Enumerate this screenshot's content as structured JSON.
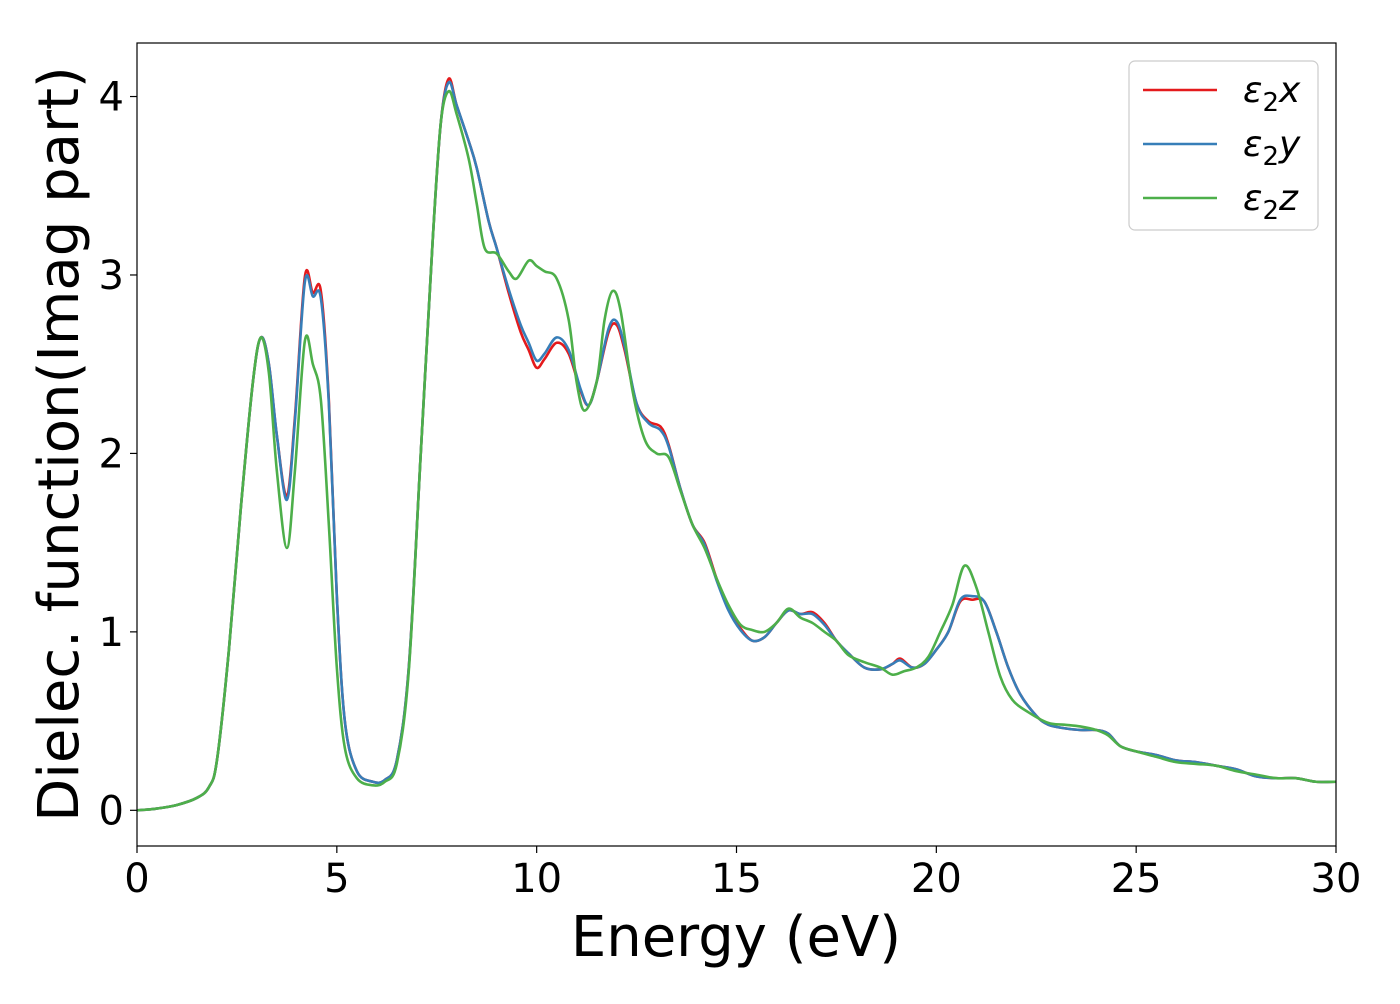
{
  "chart_data": {
    "type": "line",
    "title": "",
    "xlabel": "Energy (eV)",
    "ylabel": "Dielec. function(Imag part)",
    "xlim": [
      0,
      30
    ],
    "ylim": [
      -0.2,
      4.3
    ],
    "xticks": [
      0,
      5,
      10,
      15,
      20,
      25,
      30
    ],
    "yticks": [
      0,
      1,
      2,
      3,
      4
    ],
    "xtick_labels": [
      "0",
      "5",
      "10",
      "15",
      "20",
      "25",
      "30"
    ],
    "ytick_labels": [
      "0",
      "1",
      "2",
      "3",
      "4"
    ],
    "grid": false,
    "legend_position": "top-right",
    "series": [
      {
        "name": "ε2x",
        "legend_main": "ε",
        "legend_sub": "2",
        "legend_suffix": "x",
        "color": "#e41a1c",
        "points": [
          [
            0,
            0
          ],
          [
            0.5,
            0.01
          ],
          [
            1.0,
            0.03
          ],
          [
            1.5,
            0.07
          ],
          [
            1.8,
            0.13
          ],
          [
            2.0,
            0.28
          ],
          [
            2.3,
            0.9
          ],
          [
            2.6,
            1.7
          ],
          [
            2.9,
            2.4
          ],
          [
            3.1,
            2.65
          ],
          [
            3.3,
            2.5
          ],
          [
            3.5,
            2.1
          ],
          [
            3.75,
            1.76
          ],
          [
            3.95,
            2.2
          ],
          [
            4.2,
            2.99
          ],
          [
            4.4,
            2.9
          ],
          [
            4.6,
            2.91
          ],
          [
            4.8,
            2.3
          ],
          [
            5.0,
            1.2
          ],
          [
            5.2,
            0.5
          ],
          [
            5.5,
            0.22
          ],
          [
            5.9,
            0.16
          ],
          [
            6.2,
            0.17
          ],
          [
            6.5,
            0.28
          ],
          [
            6.8,
            0.8
          ],
          [
            7.1,
            2.0
          ],
          [
            7.4,
            3.2
          ],
          [
            7.6,
            3.85
          ],
          [
            7.8,
            4.1
          ],
          [
            8.0,
            3.95
          ],
          [
            8.3,
            3.75
          ],
          [
            8.5,
            3.6
          ],
          [
            8.8,
            3.3
          ],
          [
            9.0,
            3.15
          ],
          [
            9.3,
            2.9
          ],
          [
            9.6,
            2.68
          ],
          [
            9.8,
            2.58
          ],
          [
            10.0,
            2.48
          ],
          [
            10.2,
            2.53
          ],
          [
            10.5,
            2.62
          ],
          [
            10.8,
            2.56
          ],
          [
            11.1,
            2.35
          ],
          [
            11.3,
            2.27
          ],
          [
            11.5,
            2.4
          ],
          [
            11.8,
            2.68
          ],
          [
            12.0,
            2.72
          ],
          [
            12.2,
            2.58
          ],
          [
            12.5,
            2.28
          ],
          [
            12.8,
            2.18
          ],
          [
            13.1,
            2.15
          ],
          [
            13.3,
            2.05
          ],
          [
            13.6,
            1.8
          ],
          [
            13.9,
            1.6
          ],
          [
            14.2,
            1.5
          ],
          [
            14.5,
            1.3
          ],
          [
            14.8,
            1.13
          ],
          [
            15.1,
            1.02
          ],
          [
            15.4,
            0.95
          ],
          [
            15.7,
            0.97
          ],
          [
            16.0,
            1.05
          ],
          [
            16.3,
            1.12
          ],
          [
            16.6,
            1.1
          ],
          [
            16.9,
            1.11
          ],
          [
            17.2,
            1.05
          ],
          [
            17.5,
            0.95
          ],
          [
            17.8,
            0.88
          ],
          [
            18.2,
            0.8
          ],
          [
            18.6,
            0.79
          ],
          [
            18.9,
            0.82
          ],
          [
            19.1,
            0.85
          ],
          [
            19.4,
            0.8
          ],
          [
            19.7,
            0.82
          ],
          [
            20.0,
            0.9
          ],
          [
            20.3,
            1.0
          ],
          [
            20.6,
            1.17
          ],
          [
            20.9,
            1.18
          ],
          [
            21.2,
            1.17
          ],
          [
            21.5,
            1.0
          ],
          [
            21.8,
            0.8
          ],
          [
            22.1,
            0.65
          ],
          [
            22.5,
            0.53
          ],
          [
            22.8,
            0.48
          ],
          [
            23.2,
            0.46
          ],
          [
            23.6,
            0.45
          ],
          [
            24.0,
            0.45
          ],
          [
            24.3,
            0.43
          ],
          [
            24.6,
            0.36
          ],
          [
            25.0,
            0.33
          ],
          [
            25.5,
            0.31
          ],
          [
            26.0,
            0.28
          ],
          [
            26.5,
            0.27
          ],
          [
            27.0,
            0.25
          ],
          [
            27.5,
            0.23
          ],
          [
            28.0,
            0.19
          ],
          [
            28.5,
            0.18
          ],
          [
            29.0,
            0.18
          ],
          [
            29.5,
            0.16
          ],
          [
            30.0,
            0.16
          ]
        ]
      },
      {
        "name": "ε2y",
        "legend_main": "ε",
        "legend_sub": "2",
        "legend_suffix": "y",
        "color": "#377eb8",
        "points": [
          [
            0,
            0
          ],
          [
            0.5,
            0.01
          ],
          [
            1.0,
            0.03
          ],
          [
            1.5,
            0.07
          ],
          [
            1.8,
            0.13
          ],
          [
            2.0,
            0.28
          ],
          [
            2.3,
            0.9
          ],
          [
            2.6,
            1.7
          ],
          [
            2.9,
            2.4
          ],
          [
            3.1,
            2.65
          ],
          [
            3.3,
            2.5
          ],
          [
            3.5,
            2.1
          ],
          [
            3.75,
            1.74
          ],
          [
            3.95,
            2.18
          ],
          [
            4.2,
            2.96
          ],
          [
            4.4,
            2.88
          ],
          [
            4.6,
            2.87
          ],
          [
            4.8,
            2.28
          ],
          [
            5.0,
            1.2
          ],
          [
            5.2,
            0.5
          ],
          [
            5.5,
            0.22
          ],
          [
            5.9,
            0.16
          ],
          [
            6.2,
            0.17
          ],
          [
            6.5,
            0.28
          ],
          [
            6.8,
            0.8
          ],
          [
            7.1,
            2.0
          ],
          [
            7.4,
            3.2
          ],
          [
            7.6,
            3.85
          ],
          [
            7.8,
            4.08
          ],
          [
            8.0,
            3.95
          ],
          [
            8.3,
            3.75
          ],
          [
            8.5,
            3.6
          ],
          [
            8.8,
            3.3
          ],
          [
            9.0,
            3.15
          ],
          [
            9.3,
            2.92
          ],
          [
            9.6,
            2.72
          ],
          [
            9.8,
            2.62
          ],
          [
            10.0,
            2.52
          ],
          [
            10.2,
            2.56
          ],
          [
            10.5,
            2.65
          ],
          [
            10.8,
            2.58
          ],
          [
            11.1,
            2.36
          ],
          [
            11.3,
            2.27
          ],
          [
            11.5,
            2.4
          ],
          [
            11.8,
            2.7
          ],
          [
            12.0,
            2.74
          ],
          [
            12.2,
            2.6
          ],
          [
            12.5,
            2.28
          ],
          [
            12.8,
            2.17
          ],
          [
            13.1,
            2.13
          ],
          [
            13.3,
            2.04
          ],
          [
            13.6,
            1.8
          ],
          [
            13.9,
            1.6
          ],
          [
            14.2,
            1.49
          ],
          [
            14.5,
            1.29
          ],
          [
            14.8,
            1.12
          ],
          [
            15.1,
            1.01
          ],
          [
            15.4,
            0.95
          ],
          [
            15.7,
            0.97
          ],
          [
            16.0,
            1.05
          ],
          [
            16.3,
            1.12
          ],
          [
            16.6,
            1.1
          ],
          [
            16.9,
            1.1
          ],
          [
            17.2,
            1.04
          ],
          [
            17.5,
            0.95
          ],
          [
            17.8,
            0.88
          ],
          [
            18.2,
            0.8
          ],
          [
            18.6,
            0.79
          ],
          [
            18.9,
            0.82
          ],
          [
            19.1,
            0.84
          ],
          [
            19.4,
            0.8
          ],
          [
            19.7,
            0.82
          ],
          [
            20.0,
            0.9
          ],
          [
            20.3,
            1.0
          ],
          [
            20.6,
            1.18
          ],
          [
            20.9,
            1.2
          ],
          [
            21.2,
            1.17
          ],
          [
            21.5,
            1.0
          ],
          [
            21.8,
            0.8
          ],
          [
            22.1,
            0.65
          ],
          [
            22.5,
            0.53
          ],
          [
            22.8,
            0.48
          ],
          [
            23.2,
            0.46
          ],
          [
            23.6,
            0.45
          ],
          [
            24.0,
            0.45
          ],
          [
            24.3,
            0.43
          ],
          [
            24.6,
            0.36
          ],
          [
            25.0,
            0.33
          ],
          [
            25.5,
            0.31
          ],
          [
            26.0,
            0.28
          ],
          [
            26.5,
            0.27
          ],
          [
            27.0,
            0.25
          ],
          [
            27.5,
            0.23
          ],
          [
            28.0,
            0.19
          ],
          [
            28.5,
            0.18
          ],
          [
            29.0,
            0.18
          ],
          [
            29.5,
            0.16
          ],
          [
            30.0,
            0.16
          ]
        ]
      },
      {
        "name": "ε2z",
        "legend_main": "ε",
        "legend_sub": "2",
        "legend_suffix": "z",
        "color": "#4daf4a",
        "points": [
          [
            0,
            0
          ],
          [
            0.5,
            0.01
          ],
          [
            1.0,
            0.03
          ],
          [
            1.5,
            0.07
          ],
          [
            1.8,
            0.13
          ],
          [
            2.0,
            0.28
          ],
          [
            2.3,
            0.9
          ],
          [
            2.6,
            1.7
          ],
          [
            2.9,
            2.4
          ],
          [
            3.1,
            2.65
          ],
          [
            3.3,
            2.45
          ],
          [
            3.5,
            1.9
          ],
          [
            3.75,
            1.47
          ],
          [
            3.95,
            1.9
          ],
          [
            4.2,
            2.63
          ],
          [
            4.4,
            2.5
          ],
          [
            4.6,
            2.3
          ],
          [
            4.8,
            1.6
          ],
          [
            5.0,
            0.8
          ],
          [
            5.2,
            0.35
          ],
          [
            5.5,
            0.18
          ],
          [
            5.9,
            0.14
          ],
          [
            6.2,
            0.16
          ],
          [
            6.5,
            0.26
          ],
          [
            6.8,
            0.78
          ],
          [
            7.1,
            2.0
          ],
          [
            7.4,
            3.2
          ],
          [
            7.6,
            3.85
          ],
          [
            7.8,
            4.03
          ],
          [
            8.0,
            3.9
          ],
          [
            8.3,
            3.65
          ],
          [
            8.5,
            3.4
          ],
          [
            8.7,
            3.15
          ],
          [
            9.0,
            3.12
          ],
          [
            9.3,
            3.02
          ],
          [
            9.5,
            2.98
          ],
          [
            9.8,
            3.08
          ],
          [
            10.0,
            3.05
          ],
          [
            10.2,
            3.02
          ],
          [
            10.5,
            2.98
          ],
          [
            10.8,
            2.75
          ],
          [
            11.0,
            2.4
          ],
          [
            11.2,
            2.24
          ],
          [
            11.5,
            2.4
          ],
          [
            11.7,
            2.75
          ],
          [
            11.9,
            2.91
          ],
          [
            12.1,
            2.8
          ],
          [
            12.4,
            2.35
          ],
          [
            12.7,
            2.08
          ],
          [
            13.0,
            2.0
          ],
          [
            13.3,
            1.98
          ],
          [
            13.6,
            1.79
          ],
          [
            13.9,
            1.6
          ],
          [
            14.2,
            1.47
          ],
          [
            14.5,
            1.3
          ],
          [
            14.8,
            1.15
          ],
          [
            15.1,
            1.04
          ],
          [
            15.4,
            1.01
          ],
          [
            15.7,
            1.0
          ],
          [
            16.0,
            1.05
          ],
          [
            16.3,
            1.13
          ],
          [
            16.6,
            1.08
          ],
          [
            16.9,
            1.05
          ],
          [
            17.2,
            1.0
          ],
          [
            17.5,
            0.95
          ],
          [
            17.8,
            0.87
          ],
          [
            18.2,
            0.83
          ],
          [
            18.6,
            0.8
          ],
          [
            18.9,
            0.76
          ],
          [
            19.2,
            0.78
          ],
          [
            19.5,
            0.8
          ],
          [
            19.8,
            0.86
          ],
          [
            20.1,
            1.0
          ],
          [
            20.4,
            1.15
          ],
          [
            20.7,
            1.37
          ],
          [
            21.0,
            1.25
          ],
          [
            21.3,
            1.0
          ],
          [
            21.6,
            0.75
          ],
          [
            21.9,
            0.62
          ],
          [
            22.3,
            0.55
          ],
          [
            22.8,
            0.49
          ],
          [
            23.2,
            0.48
          ],
          [
            23.6,
            0.47
          ],
          [
            24.0,
            0.45
          ],
          [
            24.3,
            0.42
          ],
          [
            24.6,
            0.36
          ],
          [
            25.0,
            0.33
          ],
          [
            25.5,
            0.3
          ],
          [
            26.0,
            0.27
          ],
          [
            26.5,
            0.26
          ],
          [
            27.0,
            0.25
          ],
          [
            27.5,
            0.22
          ],
          [
            28.0,
            0.2
          ],
          [
            28.5,
            0.18
          ],
          [
            29.0,
            0.18
          ],
          [
            29.5,
            0.16
          ],
          [
            30.0,
            0.16
          ]
        ]
      }
    ]
  }
}
